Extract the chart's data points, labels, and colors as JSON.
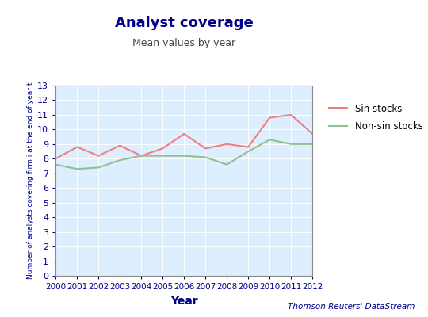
{
  "title": "Analyst coverage",
  "subtitle": "Mean values by year",
  "xlabel": "Year",
  "ylabel": "Number of analysts covering firm i at the end of year t",
  "years": [
    2000,
    2001,
    2002,
    2003,
    2004,
    2005,
    2006,
    2007,
    2008,
    2009,
    2010,
    2011,
    2012
  ],
  "sin_stocks": [
    8.0,
    8.8,
    8.2,
    8.9,
    8.2,
    8.7,
    9.7,
    8.7,
    9.0,
    8.8,
    10.8,
    11.0,
    9.7
  ],
  "non_sin_stocks": [
    7.6,
    7.3,
    7.4,
    7.9,
    8.2,
    8.2,
    8.2,
    8.1,
    7.6,
    8.5,
    9.3,
    9.0,
    9.0
  ],
  "sin_color": "#f08080",
  "non_sin_color": "#90c090",
  "background_color": "#ddeeff",
  "outer_background": "#ffffff",
  "grid_color": "#ffffff",
  "ylim": [
    0,
    13
  ],
  "yticks": [
    0,
    1,
    2,
    3,
    4,
    5,
    6,
    7,
    8,
    9,
    10,
    11,
    12,
    13
  ],
  "title_color": "#00008b",
  "subtitle_color": "#444444",
  "axis_label_color": "#00008b",
  "tick_label_color": "#00008b",
  "watermark": "Thomson Reuters' DataStream",
  "watermark_color": "#00008b",
  "legend_sin": "Sin stocks",
  "legend_non_sin": "Non-sin stocks"
}
